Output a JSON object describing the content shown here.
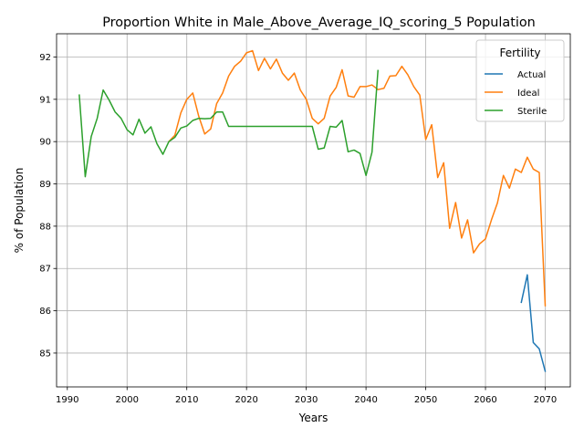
{
  "chart_data": {
    "type": "line",
    "title": "Proportion White in Male_Above_Average_IQ_scoring_5 Population",
    "xlabel": "Years",
    "ylabel": "% of Population",
    "xlim": [
      1988.2,
      2074.2
    ],
    "ylim": [
      84.2,
      92.55
    ],
    "xticks": [
      1990,
      2000,
      2010,
      2020,
      2030,
      2040,
      2050,
      2060,
      2070
    ],
    "yticks": [
      85,
      86,
      87,
      88,
      89,
      90,
      91,
      92
    ],
    "grid": true,
    "legend": {
      "title": "Fertility",
      "placement": "top-right"
    },
    "series": [
      {
        "name": "Actual",
        "color": "#1f77b4",
        "x": [
          2066,
          2067,
          2068,
          2069,
          2070
        ],
        "y": [
          86.2,
          86.85,
          85.25,
          85.1,
          84.57
        ]
      },
      {
        "name": "Ideal",
        "color": "#ff7f0e",
        "x": [
          2007,
          2008,
          2009,
          2010,
          2011,
          2012,
          2013,
          2014,
          2015,
          2016,
          2017,
          2018,
          2019,
          2020,
          2021,
          2022,
          2023,
          2024,
          2025,
          2026,
          2027,
          2028,
          2029,
          2030,
          2031,
          2032,
          2033,
          2034,
          2035,
          2036,
          2037,
          2038,
          2039,
          2040,
          2041,
          2042,
          2043,
          2044,
          2045,
          2046,
          2047,
          2048,
          2049,
          2050,
          2051,
          2052,
          2053,
          2054,
          2055,
          2056,
          2057,
          2058,
          2059,
          2060,
          2061,
          2062,
          2063,
          2064,
          2065,
          2066,
          2067,
          2068,
          2069,
          2070
        ],
        "y": [
          90.0,
          90.15,
          90.68,
          91.0,
          91.15,
          90.6,
          90.18,
          90.3,
          90.9,
          91.15,
          91.55,
          91.78,
          91.9,
          92.1,
          92.15,
          91.68,
          91.97,
          91.72,
          91.95,
          91.62,
          91.45,
          91.62,
          91.22,
          91.0,
          90.55,
          90.42,
          90.55,
          91.08,
          91.28,
          91.7,
          91.08,
          91.05,
          91.3,
          91.3,
          91.34,
          91.23,
          91.26,
          91.55,
          91.56,
          91.78,
          91.58,
          91.3,
          91.1,
          90.05,
          90.4,
          89.15,
          89.5,
          87.95,
          88.56,
          87.72,
          88.15,
          87.37,
          87.58,
          87.7,
          88.15,
          88.55,
          89.2,
          88.9,
          89.35,
          89.27,
          89.63,
          89.35,
          89.27,
          86.12
        ]
      },
      {
        "name": "Sterile",
        "color": "#2ca02c",
        "x": [
          1992,
          1993,
          1994,
          1995,
          1996,
          1997,
          1998,
          1999,
          2000,
          2001,
          2002,
          2003,
          2004,
          2005,
          2006,
          2007,
          2008,
          2009,
          2010,
          2011,
          2012,
          2013,
          2014,
          2015,
          2016,
          2017,
          2018,
          2019,
          2020,
          2021,
          2022,
          2023,
          2024,
          2025,
          2026,
          2027,
          2028,
          2029,
          2030,
          2031,
          2032,
          2033,
          2034,
          2035,
          2036,
          2037,
          2038,
          2039,
          2040,
          2041,
          2042
        ],
        "y": [
          91.1,
          89.17,
          90.12,
          90.55,
          91.22,
          90.98,
          90.7,
          90.55,
          90.28,
          90.16,
          90.53,
          90.2,
          90.35,
          89.95,
          89.7,
          90.0,
          90.1,
          90.32,
          90.37,
          90.5,
          90.55,
          90.54,
          90.55,
          90.7,
          90.7,
          90.36,
          90.36,
          90.36,
          90.36,
          90.36,
          90.36,
          90.36,
          90.36,
          90.36,
          90.36,
          90.36,
          90.36,
          90.36,
          90.36,
          90.36,
          89.82,
          89.85,
          90.36,
          90.34,
          90.5,
          89.76,
          89.8,
          89.72,
          89.2,
          89.75,
          91.68
        ]
      }
    ]
  }
}
